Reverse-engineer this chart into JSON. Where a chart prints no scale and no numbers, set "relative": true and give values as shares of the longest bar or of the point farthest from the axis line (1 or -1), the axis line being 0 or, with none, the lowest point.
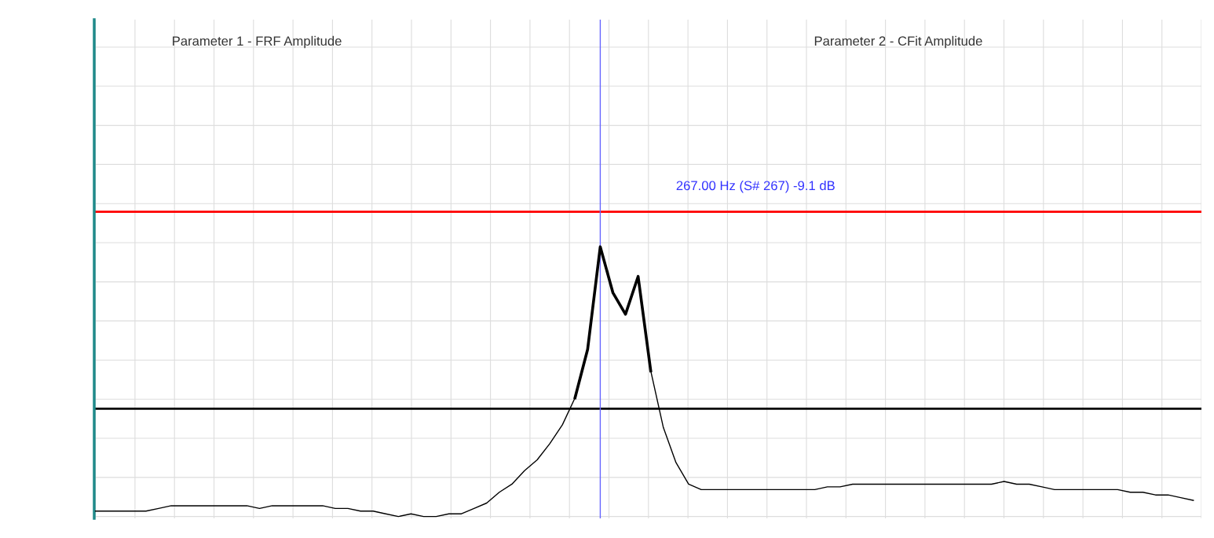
{
  "chart_data": {
    "type": "line",
    "relative": true,
    "grid": true,
    "legend": false,
    "marker": "none",
    "line_style": "solid",
    "categories": [
      null,
      null,
      null,
      null,
      null,
      null,
      null,
      null,
      null,
      null,
      null,
      null,
      null,
      null,
      null,
      null,
      null,
      null,
      null,
      null,
      null,
      null,
      null,
      null,
      null,
      null,
      null,
      null,
      null,
      null,
      null,
      null,
      null,
      null,
      null,
      null,
      null,
      null,
      null,
      null,
      null,
      null,
      null,
      null,
      null,
      null,
      null,
      null,
      null,
      null,
      null,
      null,
      null,
      null,
      null,
      null,
      null,
      null,
      null,
      null,
      null,
      null,
      null,
      null,
      null,
      null,
      null,
      null,
      null,
      null,
      null,
      null,
      null,
      null,
      null,
      null,
      null,
      null,
      null,
      null,
      null,
      null,
      null,
      null,
      null,
      null,
      null,
      null
    ],
    "series": [
      {
        "color": "#000000",
        "values": [
          0.02,
          0.02,
          0.02,
          0.02,
          0.02,
          0.03,
          0.04,
          0.04,
          0.04,
          0.04,
          0.04,
          0.04,
          0.04,
          0.03,
          0.04,
          0.04,
          0.04,
          0.04,
          0.04,
          0.03,
          0.03,
          0.02,
          0.02,
          0.01,
          0.0,
          0.01,
          0.0,
          0.0,
          0.01,
          0.01,
          0.03,
          0.05,
          0.09,
          0.12,
          0.17,
          0.21,
          0.27,
          0.34,
          0.44,
          0.62,
          1.0,
          0.83,
          0.75,
          0.89,
          0.54,
          0.33,
          0.2,
          0.12,
          0.1,
          0.1,
          0.1,
          0.1,
          0.1,
          0.1,
          0.1,
          0.1,
          0.1,
          0.1,
          0.11,
          0.11,
          0.12,
          0.12,
          0.12,
          0.12,
          0.12,
          0.12,
          0.12,
          0.12,
          0.12,
          0.12,
          0.12,
          0.12,
          0.13,
          0.12,
          0.12,
          0.11,
          0.1,
          0.1,
          0.1,
          0.1,
          0.1,
          0.1,
          0.09,
          0.09,
          0.08,
          0.08,
          0.07,
          0.06
        ]
      },
      {
        "color": "#000000",
        "values": [
          null,
          null,
          null,
          null,
          null,
          null,
          null,
          null,
          null,
          null,
          null,
          null,
          null,
          null,
          null,
          null,
          null,
          null,
          null,
          null,
          null,
          null,
          null,
          null,
          null,
          null,
          null,
          null,
          null,
          null,
          null,
          null,
          null,
          null,
          null,
          null,
          null,
          null,
          0.44,
          0.62,
          1.0,
          0.83,
          0.75,
          0.89,
          0.54,
          null,
          null,
          null,
          null,
          null,
          null,
          null,
          null,
          null,
          null,
          null,
          null,
          null,
          null,
          null,
          null,
          null,
          null,
          null,
          null,
          null,
          null,
          null,
          null,
          null,
          null,
          null,
          null,
          null,
          null,
          null,
          null,
          null,
          null,
          null,
          null,
          null,
          null,
          null,
          null,
          null,
          null,
          null
        ]
      }
    ],
    "ref_lines": [
      {
        "axis": "y",
        "value": 1.13,
        "color": "#ff0000"
      },
      {
        "axis": "y",
        "value": 0.4,
        "color": "#000000"
      }
    ],
    "annotations": [
      "Parameter 1 - FRF Amplitude",
      "Parameter 2 - CFit Amplitude",
      "267.00 Hz (S# 267) -9.1 dB"
    ]
  }
}
